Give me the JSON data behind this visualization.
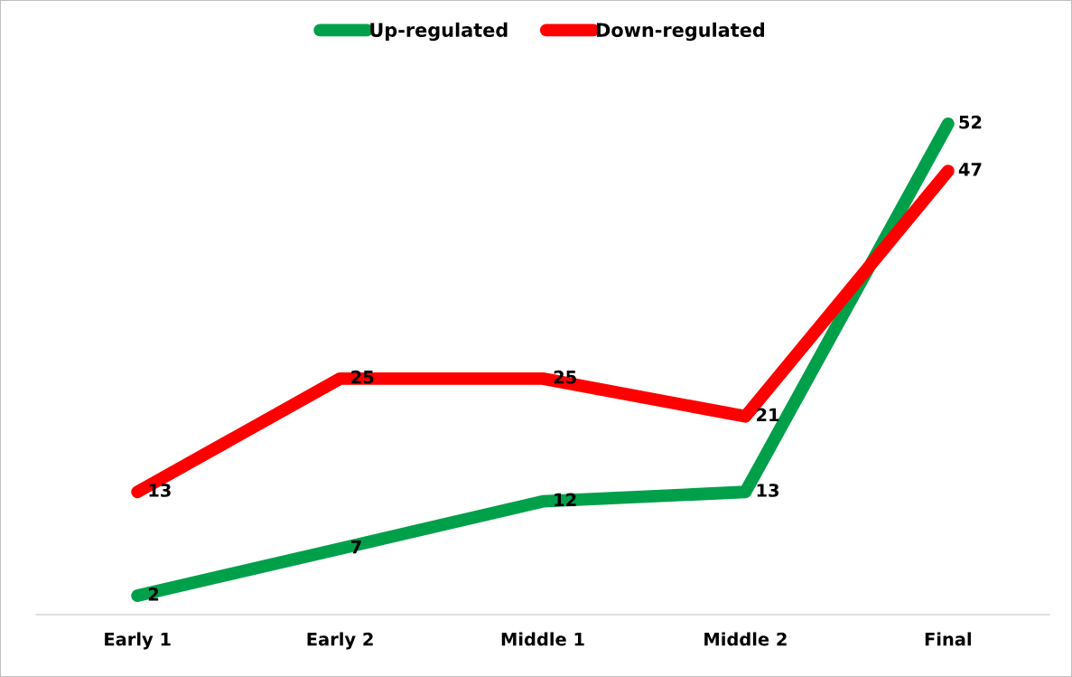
{
  "chart_data": {
    "type": "line",
    "categories": [
      "Early 1",
      "Early 2",
      "Middle 1",
      "Middle 2",
      "Final"
    ],
    "series": [
      {
        "name": "Up-regulated",
        "color": "#00a04a",
        "values": [
          2,
          7,
          12,
          13,
          52
        ]
      },
      {
        "name": "Down-regulated",
        "color": "#ff0000",
        "values": [
          13,
          25,
          25,
          21,
          47
        ]
      }
    ],
    "tick_labels": "x",
    "data_labels": true,
    "legend": "top",
    "grid": false,
    "line_style": "solid"
  }
}
